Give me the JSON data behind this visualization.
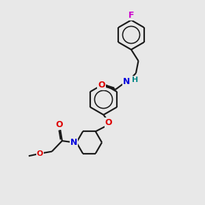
{
  "bg": "#e8e8e8",
  "bc": "#1a1a1a",
  "nc": "#0000dd",
  "oc": "#dd0000",
  "fc": "#cc00cc",
  "hc": "#008888",
  "lw": 1.6,
  "fs": 9,
  "dbo": 0.06,
  "figsize": [
    3.0,
    3.0
  ],
  "dpi": 100,
  "xlim": [
    0,
    10
  ],
  "ylim": [
    0,
    10
  ]
}
